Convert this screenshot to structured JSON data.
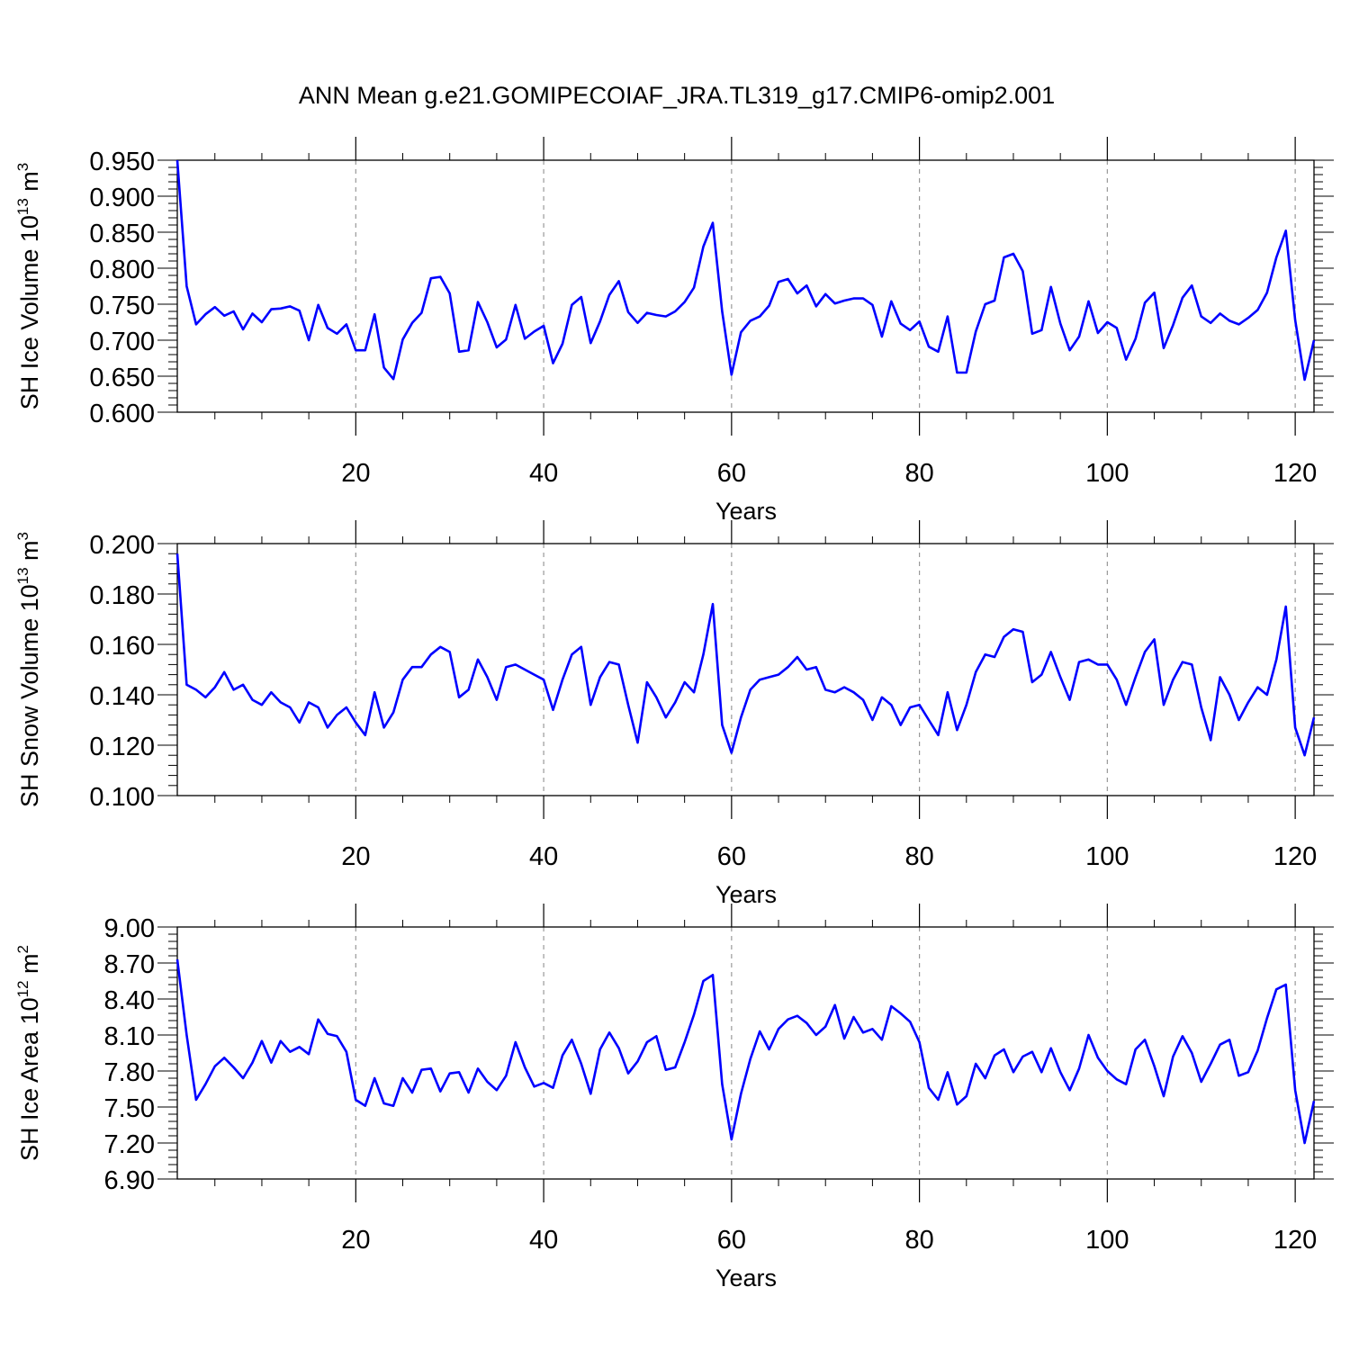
{
  "title": "ANN Mean g.e21.GOMIPECOIAF_JRA.TL319_g17.CMIP6-omip2.001",
  "chart_data": [
    {
      "type": "line",
      "xlabel": "Years",
      "ylabel": {
        "text": "SH Ice Volume 10",
        "sup": "13",
        "unit": " m",
        "unit_sup": "3"
      },
      "xlim": [
        1,
        122
      ],
      "ylim": [
        0.6,
        0.95
      ],
      "x_ticks": [
        20,
        40,
        60,
        80,
        100,
        120
      ],
      "y_ticks": [
        "0.950",
        "0.900",
        "0.850",
        "0.800",
        "0.750",
        "0.700",
        "0.650",
        "0.600"
      ],
      "y_tick_values": [
        0.95,
        0.9,
        0.85,
        0.8,
        0.75,
        0.7,
        0.65,
        0.6
      ],
      "grid": "vertical dashed at x ticks",
      "series": [
        {
          "color": "#0000ff",
          "values": [
            0.95,
            0.775,
            0.722,
            0.736,
            0.746,
            0.734,
            0.74,
            0.715,
            0.737,
            0.725,
            0.743,
            0.744,
            0.747,
            0.741,
            0.7,
            0.749,
            0.717,
            0.709,
            0.722,
            0.686,
            0.686,
            0.736,
            0.662,
            0.646,
            0.701,
            0.724,
            0.738,
            0.786,
            0.788,
            0.765,
            0.684,
            0.686,
            0.753,
            0.725,
            0.69,
            0.701,
            0.749,
            0.702,
            0.712,
            0.72,
            0.668,
            0.695,
            0.749,
            0.76,
            0.696,
            0.726,
            0.763,
            0.782,
            0.739,
            0.724,
            0.738,
            0.735,
            0.733,
            0.74,
            0.753,
            0.773,
            0.83,
            0.863,
            0.74,
            0.652,
            0.711,
            0.727,
            0.733,
            0.748,
            0.781,
            0.785,
            0.765,
            0.776,
            0.747,
            0.764,
            0.751,
            0.755,
            0.758,
            0.758,
            0.749,
            0.705,
            0.754,
            0.723,
            0.714,
            0.726,
            0.691,
            0.684,
            0.733,
            0.655,
            0.655,
            0.712,
            0.75,
            0.755,
            0.815,
            0.82,
            0.796,
            0.709,
            0.714,
            0.774,
            0.723,
            0.686,
            0.705,
            0.754,
            0.71,
            0.725,
            0.717,
            0.673,
            0.702,
            0.752,
            0.766,
            0.689,
            0.721,
            0.759,
            0.776,
            0.733,
            0.724,
            0.737,
            0.727,
            0.722,
            0.731,
            0.742,
            0.766,
            0.815,
            0.852,
            0.728,
            0.645,
            0.7
          ]
        }
      ]
    },
    {
      "type": "line",
      "xlabel": "Years",
      "ylabel": {
        "text": "SH Snow Volume 10",
        "sup": "13",
        "unit": " m",
        "unit_sup": "3"
      },
      "xlim": [
        1,
        122
      ],
      "ylim": [
        0.1,
        0.2
      ],
      "x_ticks": [
        20,
        40,
        60,
        80,
        100,
        120
      ],
      "y_ticks": [
        "0.200",
        "0.180",
        "0.160",
        "0.140",
        "0.120",
        "0.100"
      ],
      "y_tick_values": [
        0.2,
        0.18,
        0.16,
        0.14,
        0.12,
        0.1
      ],
      "grid": "vertical dashed at x ticks",
      "series": [
        {
          "color": "#0000ff",
          "values": [
            0.196,
            0.144,
            0.142,
            0.139,
            0.143,
            0.149,
            0.142,
            0.144,
            0.138,
            0.136,
            0.141,
            0.137,
            0.135,
            0.129,
            0.137,
            0.135,
            0.127,
            0.132,
            0.135,
            0.129,
            0.124,
            0.141,
            0.127,
            0.133,
            0.146,
            0.151,
            0.151,
            0.156,
            0.159,
            0.157,
            0.139,
            0.142,
            0.154,
            0.147,
            0.138,
            0.151,
            0.152,
            0.15,
            0.148,
            0.146,
            0.134,
            0.146,
            0.156,
            0.159,
            0.136,
            0.147,
            0.153,
            0.152,
            0.136,
            0.121,
            0.145,
            0.139,
            0.131,
            0.137,
            0.145,
            0.141,
            0.156,
            0.176,
            0.128,
            0.117,
            0.131,
            0.142,
            0.146,
            0.147,
            0.148,
            0.151,
            0.155,
            0.15,
            0.151,
            0.142,
            0.141,
            0.143,
            0.141,
            0.138,
            0.13,
            0.139,
            0.136,
            0.128,
            0.135,
            0.136,
            0.13,
            0.124,
            0.141,
            0.126,
            0.136,
            0.149,
            0.156,
            0.155,
            0.163,
            0.166,
            0.165,
            0.145,
            0.148,
            0.157,
            0.147,
            0.138,
            0.153,
            0.154,
            0.152,
            0.152,
            0.146,
            0.136,
            0.147,
            0.157,
            0.162,
            0.136,
            0.146,
            0.153,
            0.152,
            0.135,
            0.122,
            0.147,
            0.14,
            0.13,
            0.137,
            0.143,
            0.14,
            0.154,
            0.175,
            0.127,
            0.116,
            0.131
          ]
        }
      ]
    },
    {
      "type": "line",
      "xlabel": "Years",
      "ylabel": {
        "text": "SH Ice Area 10",
        "sup": "12",
        "unit": " m",
        "unit_sup": "2"
      },
      "xlim": [
        1,
        122
      ],
      "ylim": [
        6.9,
        9.0
      ],
      "x_ticks": [
        20,
        40,
        60,
        80,
        100,
        120
      ],
      "y_ticks": [
        "9.00",
        "8.70",
        "8.40",
        "8.10",
        "7.80",
        "7.50",
        "7.20",
        "6.90"
      ],
      "y_tick_values": [
        9.0,
        8.7,
        8.4,
        8.1,
        7.8,
        7.5,
        7.2,
        6.9
      ],
      "grid": "vertical dashed at x ticks",
      "series": [
        {
          "color": "#0000ff",
          "values": [
            8.73,
            8.1,
            7.56,
            7.69,
            7.84,
            7.91,
            7.83,
            7.74,
            7.87,
            8.05,
            7.87,
            8.05,
            7.96,
            8.0,
            7.94,
            8.23,
            8.11,
            8.09,
            7.96,
            7.56,
            7.51,
            7.74,
            7.53,
            7.51,
            7.74,
            7.62,
            7.81,
            7.82,
            7.63,
            7.78,
            7.79,
            7.62,
            7.82,
            7.71,
            7.64,
            7.76,
            8.04,
            7.83,
            7.67,
            7.7,
            7.66,
            7.93,
            8.06,
            7.86,
            7.61,
            7.98,
            8.12,
            7.99,
            7.78,
            7.88,
            8.04,
            8.09,
            7.81,
            7.83,
            8.04,
            8.27,
            8.55,
            8.6,
            7.69,
            7.23,
            7.61,
            7.9,
            8.13,
            7.98,
            8.15,
            8.23,
            8.26,
            8.2,
            8.1,
            8.17,
            8.35,
            8.07,
            8.25,
            8.12,
            8.15,
            8.06,
            8.34,
            8.28,
            8.21,
            8.04,
            7.66,
            7.56,
            7.79,
            7.52,
            7.59,
            7.86,
            7.74,
            7.93,
            7.98,
            7.79,
            7.92,
            7.96,
            7.79,
            7.99,
            7.79,
            7.64,
            7.82,
            8.1,
            7.91,
            7.8,
            7.73,
            7.69,
            7.98,
            8.06,
            7.84,
            7.59,
            7.92,
            8.09,
            7.95,
            7.71,
            7.86,
            8.02,
            8.06,
            7.76,
            7.79,
            7.97,
            8.24,
            8.48,
            8.52,
            7.64,
            7.2,
            7.55
          ]
        }
      ]
    }
  ]
}
